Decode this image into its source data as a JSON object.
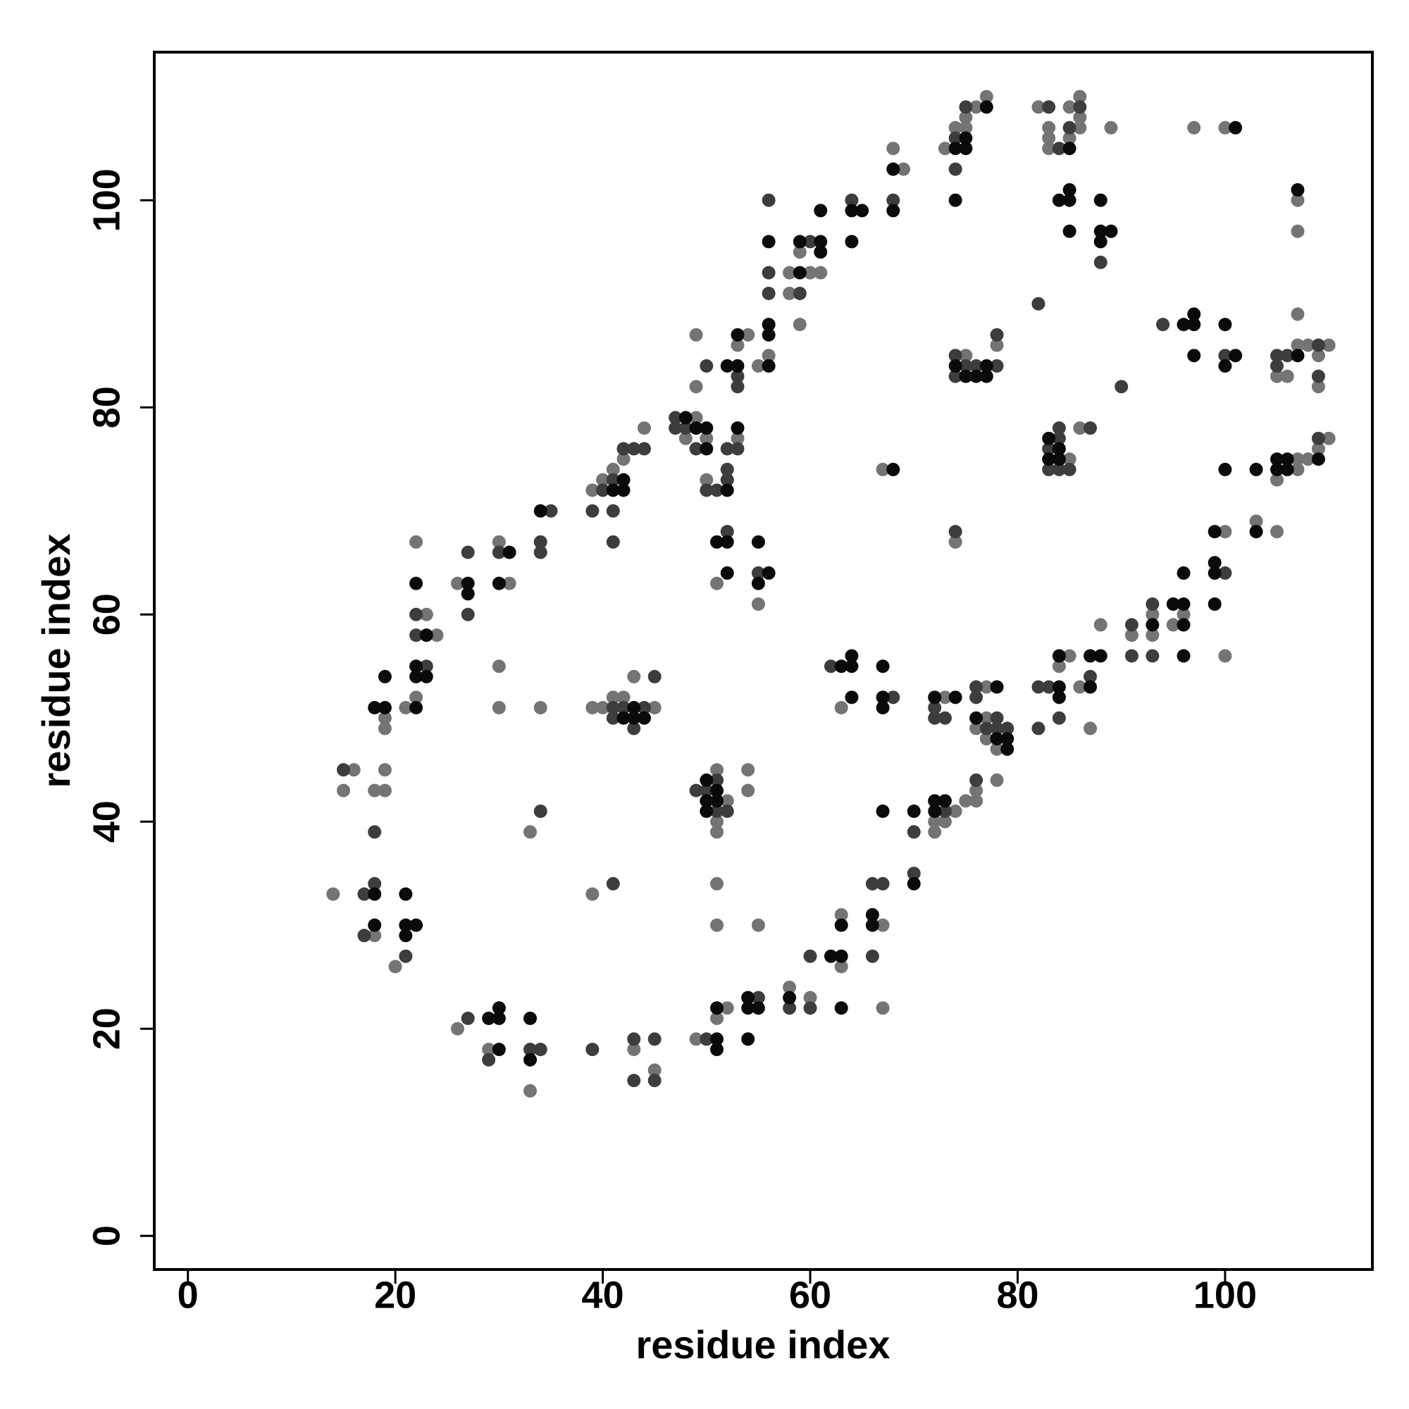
{
  "chart_data": {
    "type": "scatter",
    "x_label": "residue index",
    "y_label": "residue index",
    "xlim": [
      -3.24,
      114.2
    ],
    "ylim": [
      -3.25,
      114.3
    ],
    "xticks": [
      0,
      20,
      40,
      60,
      80,
      100
    ],
    "yticks": [
      0,
      20,
      40,
      60,
      80,
      100
    ],
    "grid": false,
    "series": [
      {
        "color": "#747474",
        "x": [
          14,
          16,
          15,
          18,
          18,
          19,
          19,
          19,
          19,
          20,
          21,
          22,
          24,
          23,
          22,
          26,
          26,
          29,
          30,
          31,
          30,
          30,
          33,
          33,
          34,
          39,
          39,
          39,
          40,
          40,
          41,
          41,
          42,
          42,
          43,
          43,
          44,
          45,
          45,
          48,
          49,
          49,
          49,
          49,
          50,
          50,
          51,
          51,
          51,
          51,
          51,
          51,
          51,
          52,
          52,
          53,
          53,
          54,
          54,
          54,
          55,
          55,
          55,
          56,
          58,
          58,
          58,
          59,
          59,
          60,
          60,
          61,
          63,
          63,
          63,
          67,
          67,
          67,
          68,
          69,
          72,
          72,
          73,
          73,
          73,
          74,
          74,
          74,
          75,
          75,
          75,
          75,
          76,
          76,
          76,
          76,
          77,
          77,
          77,
          77,
          78,
          78,
          78,
          82,
          83,
          83,
          83,
          84,
          85,
          85,
          85,
          85,
          86,
          86,
          86,
          86,
          86,
          87,
          88,
          89,
          91,
          93,
          93,
          95,
          96,
          97,
          100,
          100,
          100,
          103,
          105,
          105,
          105,
          106,
          107,
          107,
          107,
          107,
          107,
          107,
          108,
          108,
          109,
          109,
          109,
          110,
          110
        ],
        "values": [
          33,
          45,
          43,
          29,
          43,
          43,
          45,
          49,
          50,
          26,
          51,
          52,
          58,
          60,
          67,
          20,
          63,
          18,
          67,
          63,
          55,
          51,
          14,
          39,
          51,
          33,
          51,
          72,
          51,
          73,
          52,
          74,
          52,
          75,
          18,
          54,
          78,
          16,
          51,
          77,
          19,
          79,
          82,
          87,
          73,
          77,
          21,
          30,
          34,
          39,
          40,
          45,
          63,
          22,
          42,
          77,
          86,
          43,
          45,
          87,
          30,
          61,
          84,
          85,
          24,
          91,
          93,
          88,
          95,
          23,
          93,
          93,
          26,
          31,
          51,
          22,
          30,
          74,
          105,
          103,
          39,
          40,
          40,
          52,
          105,
          41,
          67,
          107,
          42,
          85,
          107,
          108,
          42,
          43,
          49,
          109,
          48,
          50,
          53,
          110,
          44,
          47,
          86,
          109,
          105,
          106,
          107,
          55,
          56,
          75,
          106,
          109,
          53,
          78,
          107,
          108,
          110,
          49,
          59,
          107,
          58,
          58,
          60,
          59,
          60,
          107,
          56,
          68,
          107,
          69,
          68,
          73,
          83,
          83,
          74,
          75,
          86,
          89,
          97,
          100,
          75,
          86,
          76,
          82,
          85,
          77,
          86
        ]
      },
      {
        "color": "#3d3d3d",
        "x": [
          15,
          17,
          18,
          17,
          18,
          21,
          23,
          22,
          22,
          27,
          27,
          27,
          29,
          30,
          33,
          34,
          34,
          34,
          34,
          35,
          39,
          39,
          40,
          41,
          41,
          41,
          41,
          41,
          41,
          42,
          42,
          43,
          43,
          43,
          43,
          44,
          44,
          45,
          45,
          45,
          47,
          47,
          48,
          49,
          49,
          50,
          50,
          50,
          50,
          51,
          51,
          51,
          52,
          52,
          52,
          52,
          52,
          53,
          53,
          53,
          55,
          55,
          56,
          56,
          56,
          58,
          59,
          60,
          60,
          60,
          62,
          64,
          66,
          66,
          67,
          68,
          68,
          70,
          70,
          72,
          72,
          73,
          73,
          74,
          74,
          74,
          74,
          74,
          75,
          75,
          76,
          76,
          76,
          76,
          77,
          78,
          78,
          78,
          78,
          79,
          82,
          82,
          82,
          83,
          83,
          83,
          83,
          84,
          84,
          84,
          84,
          84,
          85,
          85,
          86,
          87,
          87,
          88,
          90,
          91,
          91,
          93,
          93,
          94,
          100,
          100,
          105,
          105,
          106,
          109,
          109,
          109
        ],
        "values": [
          45,
          33,
          34,
          29,
          39,
          27,
          55,
          58,
          60,
          21,
          60,
          66,
          17,
          66,
          18,
          18,
          41,
          66,
          67,
          70,
          18,
          70,
          72,
          34,
          50,
          51,
          67,
          70,
          73,
          51,
          76,
          15,
          19,
          49,
          76,
          51,
          76,
          15,
          19,
          54,
          78,
          79,
          78,
          43,
          76,
          19,
          43,
          72,
          84,
          41,
          44,
          72,
          41,
          68,
          73,
          74,
          76,
          76,
          82,
          83,
          23,
          64,
          91,
          93,
          100,
          22,
          91,
          22,
          27,
          96,
          55,
          100,
          27,
          34,
          34,
          52,
          100,
          35,
          39,
          50,
          51,
          41,
          50,
          68,
          83,
          85,
          103,
          106,
          84,
          109,
          44,
          52,
          53,
          84,
          49,
          49,
          50,
          84,
          87,
          49,
          49,
          53,
          90,
          53,
          74,
          76,
          109,
          50,
          74,
          77,
          78,
          105,
          74,
          107,
          109,
          54,
          78,
          94,
          82,
          56,
          59,
          56,
          61,
          88,
          64,
          85,
          84,
          85,
          85,
          77,
          83,
          86
        ]
      },
      {
        "color": "#0a0a0a",
        "x": [
          18,
          18,
          19,
          18,
          19,
          21,
          21,
          22,
          21,
          22,
          22,
          22,
          23,
          23,
          22,
          27,
          27,
          29,
          30,
          30,
          30,
          30,
          31,
          33,
          33,
          34,
          41,
          42,
          42,
          42,
          43,
          43,
          44,
          48,
          49,
          50,
          50,
          50,
          50,
          50,
          51,
          51,
          51,
          51,
          51,
          51,
          52,
          52,
          52,
          52,
          53,
          53,
          53,
          54,
          54,
          54,
          55,
          55,
          55,
          56,
          56,
          56,
          56,
          56,
          58,
          59,
          59,
          61,
          61,
          61,
          62,
          63,
          63,
          63,
          63,
          64,
          64,
          64,
          64,
          64,
          65,
          66,
          66,
          67,
          67,
          67,
          67,
          68,
          68,
          68,
          70,
          70,
          72,
          72,
          72,
          73,
          74,
          74,
          74,
          74,
          75,
          75,
          75,
          76,
          76,
          77,
          77,
          77,
          78,
          78,
          79,
          79,
          83,
          83,
          84,
          84,
          84,
          84,
          84,
          84,
          85,
          85,
          85,
          85,
          87,
          87,
          88,
          88,
          88,
          88,
          89,
          93,
          95,
          96,
          96,
          96,
          96,
          96,
          97,
          97,
          97,
          99,
          99,
          99,
          99,
          100,
          100,
          100,
          101,
          101,
          103,
          103,
          105,
          105,
          106,
          106,
          107,
          107,
          109
        ],
        "values": [
          33,
          30,
          51,
          51,
          54,
          29,
          30,
          30,
          33,
          51,
          54,
          55,
          54,
          58,
          63,
          62,
          63,
          21,
          21,
          22,
          18,
          63,
          66,
          17,
          21,
          70,
          72,
          50,
          72,
          73,
          50,
          51,
          50,
          79,
          78,
          41,
          42,
          44,
          76,
          78,
          18,
          19,
          22,
          42,
          43,
          67,
          64,
          67,
          72,
          84,
          78,
          84,
          87,
          19,
          22,
          23,
          22,
          63,
          67,
          64,
          84,
          87,
          88,
          96,
          23,
          93,
          96,
          95,
          96,
          99,
          27,
          22,
          27,
          30,
          55,
          52,
          55,
          56,
          96,
          99,
          99,
          30,
          31,
          41,
          51,
          52,
          55,
          74,
          99,
          103,
          34,
          41,
          41,
          42,
          52,
          42,
          52,
          84,
          100,
          105,
          83,
          105,
          106,
          50,
          83,
          83,
          84,
          109,
          48,
          53,
          47,
          48,
          75,
          77,
          52,
          53,
          56,
          75,
          76,
          100,
          97,
          100,
          101,
          105,
          53,
          56,
          56,
          96,
          97,
          100,
          97,
          59,
          61,
          56,
          59,
          61,
          64,
          88,
          85,
          88,
          89,
          61,
          64,
          65,
          68,
          74,
          84,
          88,
          85,
          107,
          68,
          74,
          74,
          75,
          74,
          75,
          85,
          101,
          75
        ]
      }
    ]
  }
}
